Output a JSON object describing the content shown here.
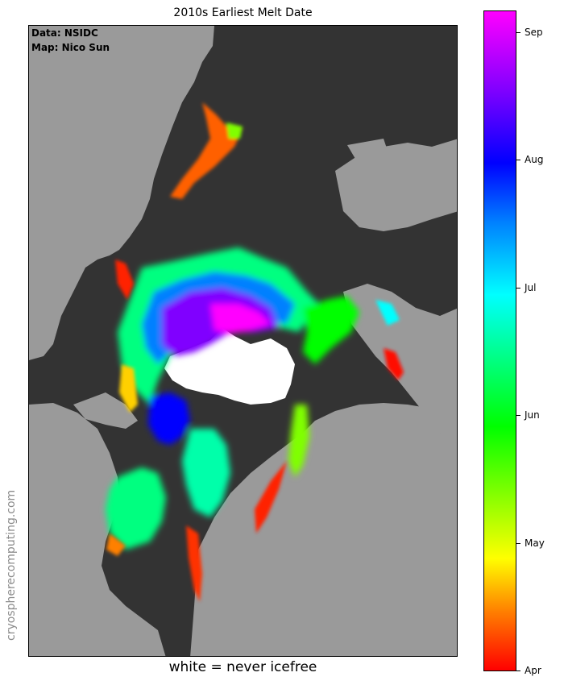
{
  "title": "2010s Earliest Melt Date",
  "credits": {
    "data": "Data: NSIDC",
    "map": "Map: Nico Sun"
  },
  "caption": "white = never icefree",
  "watermark": "cryospherecomputing.com",
  "colorbar": {
    "ticks": [
      {
        "label": "Apr",
        "level": 0.0
      },
      {
        "label": "May",
        "level": 0.193
      },
      {
        "label": "Jun",
        "level": 0.388
      },
      {
        "label": "Jul",
        "level": 0.581
      },
      {
        "label": "Aug",
        "level": 0.775
      },
      {
        "label": "Sep",
        "level": 0.968
      }
    ]
  },
  "colors": {
    "ocean": "#333333",
    "land": "#9a9a9a",
    "never_icefree": "#ffffff",
    "scale": [
      "#ff0000",
      "#ff8000",
      "#ffff00",
      "#80ff00",
      "#00ff00",
      "#00ff80",
      "#00ffff",
      "#0080ff",
      "#0000ff",
      "#8000ff",
      "#ff00ff"
    ]
  }
}
